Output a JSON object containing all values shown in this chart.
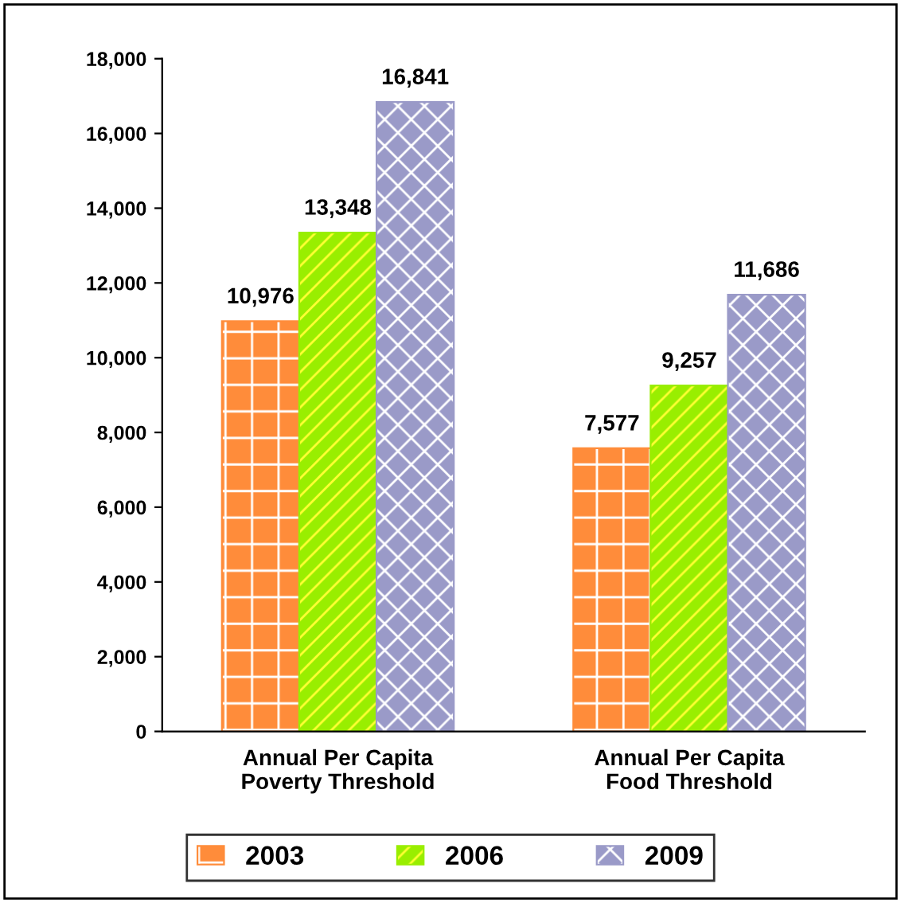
{
  "chart_data": {
    "type": "bar",
    "categories": [
      "Annual Per Capita\nPoverty Threshold",
      "Annual Per Capita\nFood Threshold"
    ],
    "series": [
      {
        "name": "2003",
        "color": "#ff8c3a",
        "values": [
          10976,
          7577
        ],
        "value_labels": [
          "10,976",
          "7,577"
        ]
      },
      {
        "name": "2006",
        "color": "#99ee00",
        "values": [
          13348,
          9257
        ],
        "value_labels": [
          "13,348",
          "9,257"
        ]
      },
      {
        "name": "2009",
        "color": "#9a9ac8",
        "values": [
          16841,
          11686
        ],
        "value_labels": [
          "16,841",
          "11,686"
        ]
      }
    ],
    "ylim": [
      0,
      18000
    ],
    "yticks": [
      {
        "value": 0,
        "label": "0"
      },
      {
        "value": 2000,
        "label": "2,000"
      },
      {
        "value": 4000,
        "label": "4,000"
      },
      {
        "value": 6000,
        "label": "6,000"
      },
      {
        "value": 8000,
        "label": "8,000"
      },
      {
        "value": 10000,
        "label": "10,000"
      },
      {
        "value": 12000,
        "label": "12,000"
      },
      {
        "value": 14000,
        "label": "14,000"
      },
      {
        "value": 16000,
        "label": "16,000"
      },
      {
        "value": 18000,
        "label": "18,000"
      }
    ],
    "grid": false,
    "legend": "bottom"
  }
}
